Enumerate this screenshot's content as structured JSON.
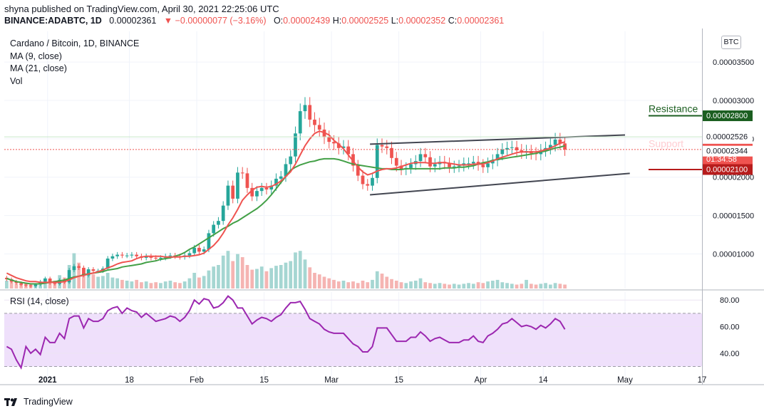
{
  "header": {
    "publisher_line": "shyna published on TradingView.com, April 30, 2021 22:25:06 UTC",
    "symbol": "BINANCE:ADABTC, 1D",
    "last": "0.00002361",
    "change": "▼ −0.00000077 (−3.16%)",
    "o_label": "O:",
    "o": "0.00002439",
    "h_label": "H:",
    "h": "0.00002525",
    "l_label": "L:",
    "l": "0.00002352",
    "c_label": "C:",
    "c": "0.00002361"
  },
  "legend": {
    "title": "Cardano / Bitcoin, 1D, BINANCE",
    "ma9": "MA (9, close)",
    "ma21": "MA (21, close)",
    "vol": "Vol"
  },
  "currency_button": "BTC",
  "rsi_label": "RSI (14, close)",
  "footer": {
    "brand": "TradingView"
  },
  "colors": {
    "up": "#26a69a",
    "down": "#ef5350",
    "ma9": "#ef5350",
    "ma21": "#43a047",
    "rsi": "#9c27b0",
    "rsi_band": "#efe0fb",
    "resistance": "#1b5e20",
    "support": "#b71c1c"
  },
  "chart_data": [
    {
      "type": "candlestick",
      "symbol": "ADABTC",
      "timeframe": "1D",
      "y_range": [
        5.5e-06,
        3.9e-05
      ],
      "y_ticks": [
        "0.00003500",
        "0.00003000",
        "0.00002500",
        "0.00002000",
        "0.00001500",
        "0.00001000"
      ],
      "y_tick_values": [
        3.5e-05,
        3e-05,
        2.5e-05,
        2e-05,
        1.5e-05,
        1e-05
      ],
      "x_ticks": [
        "2021",
        "18",
        "Feb",
        "15",
        "Mar",
        "15",
        "Apr",
        "14",
        "May",
        "17"
      ],
      "x_tick_dates": [
        "2021-01-01",
        "2021-01-18",
        "2021-02-01",
        "2021-02-15",
        "2021-03-01",
        "2021-03-15",
        "2021-04-01",
        "2021-04-14",
        "2021-05-01",
        "2021-05-17"
      ],
      "x_range": [
        "2020-12-23",
        "2021-05-17"
      ],
      "price_labels": [
        {
          "label": "Resistance",
          "value": "0.00002800",
          "price": 2.8e-05
        },
        {
          "label": "",
          "value": "0.00002526",
          "price": 2.526e-05
        },
        {
          "label": "",
          "value": "0.00002361",
          "sub": "01:34:58",
          "price": 2.361e-05
        },
        {
          "label": "Support",
          "value": "0.00002344",
          "price": 2.344e-05
        },
        {
          "label": "",
          "value": "0.00002100",
          "price": 2.1e-05
        }
      ],
      "trend_channel": {
        "upper": [
          [
            "2021-03-09",
            2.43e-05
          ],
          [
            "2021-05-01",
            2.55e-05
          ]
        ],
        "lower": [
          [
            "2021-03-09",
            1.77e-05
          ],
          [
            "2021-05-02",
            2.05e-05
          ]
        ]
      },
      "closes": [
        6.7e-06,
        6.4e-06,
        6.2e-06,
        6e-06,
        5.9e-06,
        5.8e-06,
        6e-06,
        6.4e-06,
        6.8e-06,
        6.2e-06,
        6.1e-06,
        6.6e-06,
        6.3e-06,
        7.9e-06,
        8.4e-06,
        8.2e-06,
        7.2e-06,
        8e-06,
        7.8e-06,
        7.8e-06,
        8.1e-06,
        9.4e-06,
        9.7e-06,
        9.9e-06,
        9.8e-06,
        9.8e-06,
        9.9e-06,
        9.7e-06,
        9.5e-06,
        9.7e-06,
        9.5e-06,
        9.4e-06,
        9.5e-06,
        9.7e-06,
        9.8e-06,
        9.7e-06,
        9.6e-06,
        9.8e-06,
        1.01e-05,
        1.08e-05,
        1.03e-05,
        1.06e-05,
        1.27e-05,
        1.38e-05,
        1.43e-05,
        1.63e-05,
        1.89e-05,
        1.72e-05,
        2.06e-05,
        2.05e-05,
        1.86e-05,
        1.75e-05,
        1.82e-05,
        1.86e-05,
        1.84e-05,
        1.89e-05,
        1.98e-05,
        2.01e-05,
        2.17e-05,
        2.27e-05,
        2.57e-05,
        2.86e-05,
        2.94e-05,
        2.75e-05,
        2.68e-05,
        2.62e-05,
        2.52e-05,
        2.46e-05,
        2.44e-05,
        2.38e-05,
        2.4e-05,
        2.3e-05,
        2.15e-05,
        2.02e-05,
        1.91e-05,
        1.89e-05,
        1.99e-05,
        2.42e-05,
        2.4e-05,
        2.38e-05,
        2.25e-05,
        2.15e-05,
        2.1e-05,
        2.12e-05,
        2.17e-05,
        2.21e-05,
        2.3e-05,
        2.26e-05,
        2.14e-05,
        2.17e-05,
        2.2e-05,
        2.18e-05,
        2.13e-05,
        2.14e-05,
        2.15e-05,
        2.18e-05,
        2.18e-05,
        2.2e-05,
        2.16e-05,
        2.13e-05,
        2.18e-05,
        2.22e-05,
        2.3e-05,
        2.36e-05,
        2.38e-05,
        2.39e-05,
        2.35e-05,
        2.32e-05,
        2.34e-05,
        2.31e-05,
        2.3e-05,
        2.35e-05,
        2.38e-05,
        2.42e-05,
        2.49e-05,
        2.44e-05,
        2.36e-05
      ],
      "ma9": [
        7.5e-06,
        7.2e-06,
        6.9e-06,
        6.7e-06,
        6.5e-06,
        6.4e-06,
        6.4e-06,
        6.3e-06,
        6.3e-06,
        6.3e-06,
        6.3e-06,
        6.3e-06,
        6.4e-06,
        6.6e-06,
        6.9e-06,
        7.1e-06,
        7.2e-06,
        7.4e-06,
        7.5e-06,
        7.7e-06,
        7.9e-06,
        8.2e-06,
        8.4e-06,
        8.7e-06,
        8.9e-06,
        9e-06,
        9.1e-06,
        9.4e-06,
        9.6e-06,
        9.7e-06,
        9.7e-06,
        9.7e-06,
        9.7e-06,
        9.6e-06,
        9.6e-06,
        9.6e-06,
        9.6e-06,
        9.7e-06,
        9.7e-06,
        9.8e-06,
        9.9e-06,
        1.01e-05,
        1.06e-05,
        1.11e-05,
        1.18e-05,
        1.27e-05,
        1.38e-05,
        1.47e-05,
        1.58e-05,
        1.7e-05,
        1.77e-05,
        1.83e-05,
        1.87e-05,
        1.88e-05,
        1.87e-05,
        1.88e-05,
        1.91e-05,
        1.95e-05,
        2.01e-05,
        2.07e-05,
        2.17e-05,
        2.29e-05,
        2.41e-05,
        2.5e-05,
        2.57e-05,
        2.6e-05,
        2.58e-05,
        2.55e-05,
        2.48e-05,
        2.43e-05,
        2.37e-05,
        2.29e-05,
        2.21e-05,
        2.13e-05,
        2.07e-05,
        2.03e-05,
        2.05e-05,
        2.08e-05,
        2.1e-05,
        2.11e-05,
        2.11e-05,
        2.12e-05,
        2.14e-05,
        2.16e-05,
        2.18e-05,
        2.19e-05,
        2.19e-05,
        2.19e-05,
        2.18e-05,
        2.18e-05,
        2.19e-05,
        2.19e-05,
        2.18e-05,
        2.17e-05,
        2.16e-05,
        2.16e-05,
        2.16e-05,
        2.17e-05,
        2.17e-05,
        2.17e-05,
        2.19e-05,
        2.21e-05,
        2.24e-05,
        2.26e-05,
        2.28e-05,
        2.3e-05,
        2.32e-05,
        2.33e-05,
        2.33e-05,
        2.33e-05,
        2.33e-05,
        2.34e-05,
        2.36e-05,
        2.38e-05,
        2.41e-05,
        2.44e-05,
        2.46e-05
      ],
      "ma21": [
        6.8e-06,
        6.6e-06,
        6.4e-06,
        6.3e-06,
        6.2e-06,
        6.1e-06,
        6.1e-06,
        6.1e-06,
        6.2e-06,
        6.3e-06,
        6.4e-06,
        6.5e-06,
        6.6e-06,
        6.8e-06,
        7e-06,
        7.1e-06,
        7.3e-06,
        7.4e-06,
        7.5e-06,
        7.6e-06,
        7.7e-06,
        7.9e-06,
        8e-06,
        8.1e-06,
        8.3e-06,
        8.4e-06,
        8.5e-06,
        8.6e-06,
        8.7e-06,
        8.9e-06,
        9e-06,
        9.1e-06,
        9.3e-06,
        9.4e-06,
        9.5e-06,
        9.7e-06,
        9.9e-06,
        1.02e-05,
        1.06e-05,
        1.09e-05,
        1.13e-05,
        1.17e-05,
        1.21e-05,
        1.25e-05,
        1.29e-05,
        1.33e-05,
        1.36e-05,
        1.4e-05,
        1.43e-05,
        1.47e-05,
        1.51e-05,
        1.55e-05,
        1.59e-05,
        1.64e-05,
        1.7e-05,
        1.77e-05,
        1.85e-05,
        1.93e-05,
        2.01e-05,
        2.09e-05,
        2.13e-05,
        2.16e-05,
        2.18e-05,
        2.2e-05,
        2.21e-05,
        2.23e-05,
        2.24e-05,
        2.24e-05,
        2.24e-05,
        2.23e-05,
        2.21e-05,
        2.19e-05,
        2.17e-05,
        2.16e-05,
        2.15e-05,
        2.14e-05,
        2.13e-05,
        2.12e-05,
        2.11e-05,
        2.11e-05,
        2.1e-05,
        2.1e-05,
        2.1e-05,
        2.11e-05,
        2.11e-05,
        2.11e-05,
        2.11e-05,
        2.11e-05,
        2.11e-05,
        2.11e-05,
        2.11e-05,
        2.12e-05,
        2.12e-05,
        2.12e-05,
        2.13e-05,
        2.13e-05,
        2.14e-05,
        2.15e-05,
        2.17e-05,
        2.19e-05,
        2.2e-05,
        2.22e-05,
        2.23e-05,
        2.24e-05,
        2.25e-05,
        2.26e-05,
        2.27e-05,
        2.28e-05,
        2.29e-05,
        2.3e-05,
        2.31e-05,
        2.33e-05,
        2.34e-05,
        2.36e-05,
        2.38e-05,
        2.39e-05,
        2.41e-05
      ]
    },
    {
      "type": "line",
      "name": "RSI (14, close)",
      "y_ticks": [
        "80.00",
        "60.00",
        "40.00"
      ],
      "y_tick_values": [
        80,
        60,
        40
      ],
      "y_range": [
        26,
        86
      ],
      "band": [
        30,
        70
      ],
      "values": [
        45,
        43,
        35,
        29,
        45,
        40,
        43,
        39,
        52,
        48,
        48,
        55,
        51,
        66,
        68,
        68,
        59,
        66,
        64,
        64,
        66,
        72,
        74,
        75,
        70,
        74,
        72,
        71,
        67,
        70,
        67,
        64,
        65,
        66,
        68,
        67,
        64,
        67,
        72,
        80,
        77,
        81,
        80,
        74,
        75,
        78,
        83,
        80,
        74,
        74,
        68,
        62,
        65,
        67,
        66,
        64,
        67,
        69,
        74,
        78,
        78,
        79,
        73,
        66,
        64,
        62,
        58,
        56,
        55,
        55,
        55,
        51,
        47,
        45,
        41,
        41,
        45,
        59,
        59,
        59,
        54,
        49,
        49,
        49,
        52,
        52,
        56,
        53,
        49,
        51,
        52,
        50,
        48,
        48,
        48,
        50,
        50,
        53,
        49,
        48,
        53,
        55,
        58,
        62,
        63,
        66,
        63,
        60,
        61,
        60,
        58,
        61,
        59,
        62,
        66,
        64,
        58
      ]
    }
  ]
}
